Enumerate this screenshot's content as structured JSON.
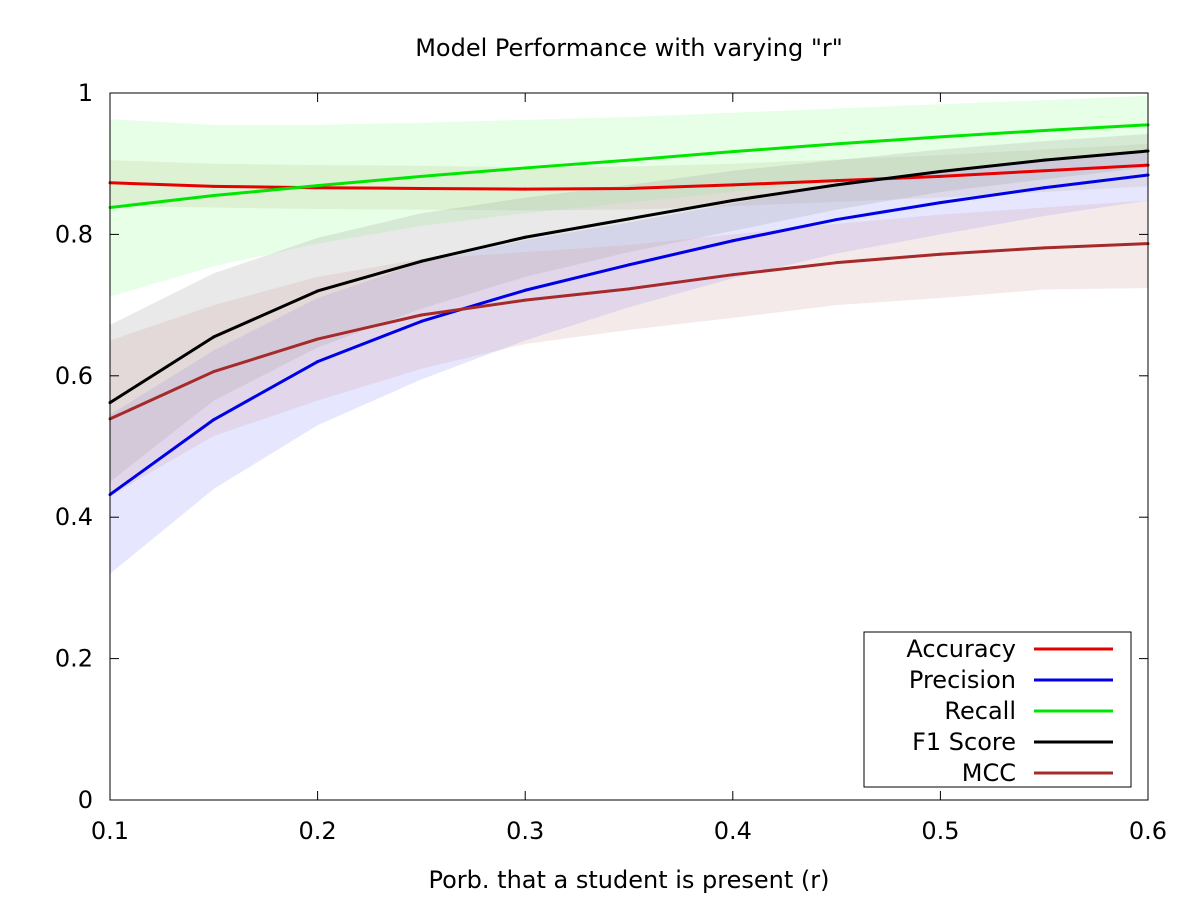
{
  "chart_data": {
    "type": "line",
    "title": "Model Performance with varying \"r\"",
    "xlabel": "Porb. that a student is present (r)",
    "ylabel": "",
    "xlim": [
      0.1,
      0.6
    ],
    "ylim": [
      0,
      1
    ],
    "x_ticks": [
      "0.1",
      "0.2",
      "0.3",
      "0.4",
      "0.5",
      "0.6"
    ],
    "y_ticks": [
      "0",
      "0.2",
      "0.4",
      "0.6",
      "0.8",
      "1"
    ],
    "legend_position": "bottom-right",
    "grid": false,
    "x": [
      0.1,
      0.15,
      0.2,
      0.25,
      0.3,
      0.35,
      0.4,
      0.45,
      0.5,
      0.55,
      0.6
    ],
    "series": [
      {
        "name": "Accuracy",
        "color": "#e60000",
        "band_color": "#c8b48c",
        "values": [
          0.873,
          0.868,
          0.866,
          0.865,
          0.864,
          0.865,
          0.87,
          0.876,
          0.882,
          0.89,
          0.898
        ],
        "lower": [
          0.84,
          0.838,
          0.836,
          0.835,
          0.834,
          0.835,
          0.84,
          0.846,
          0.852,
          0.86,
          0.868
        ],
        "upper": [
          0.905,
          0.9,
          0.898,
          0.897,
          0.895,
          0.896,
          0.9,
          0.906,
          0.912,
          0.92,
          0.928
        ]
      },
      {
        "name": "Precision",
        "color": "#0000e6",
        "band_color": "#8c8cff",
        "values": [
          0.432,
          0.538,
          0.62,
          0.677,
          0.721,
          0.757,
          0.791,
          0.821,
          0.845,
          0.866,
          0.884
        ],
        "lower": [
          0.32,
          0.44,
          0.53,
          0.595,
          0.65,
          0.697,
          0.738,
          0.773,
          0.8,
          0.826,
          0.848
        ],
        "upper": [
          0.545,
          0.636,
          0.71,
          0.76,
          0.792,
          0.817,
          0.844,
          0.869,
          0.89,
          0.906,
          0.92
        ]
      },
      {
        "name": "Recall",
        "color": "#00e600",
        "band_color": "#8cff8c",
        "values": [
          0.838,
          0.855,
          0.869,
          0.882,
          0.894,
          0.905,
          0.917,
          0.928,
          0.938,
          0.947,
          0.955
        ],
        "lower": [
          0.712,
          0.755,
          0.787,
          0.812,
          0.83,
          0.845,
          0.86,
          0.875,
          0.89,
          0.905,
          0.915
        ],
        "upper": [
          0.963,
          0.955,
          0.955,
          0.958,
          0.962,
          0.966,
          0.972,
          0.978,
          0.984,
          0.99,
          0.996
        ]
      },
      {
        "name": "F1 Score",
        "color": "#000000",
        "band_color": "#9a9a9a",
        "values": [
          0.562,
          0.655,
          0.72,
          0.762,
          0.796,
          0.822,
          0.848,
          0.87,
          0.889,
          0.905,
          0.918
        ],
        "lower": [
          0.45,
          0.565,
          0.64,
          0.695,
          0.74,
          0.775,
          0.805,
          0.835,
          0.86,
          0.878,
          0.895
        ],
        "upper": [
          0.672,
          0.745,
          0.795,
          0.83,
          0.852,
          0.87,
          0.89,
          0.905,
          0.92,
          0.932,
          0.942
        ]
      },
      {
        "name": "MCC",
        "color": "#a52a2a",
        "band_color": "#d2a0a0",
        "values": [
          0.539,
          0.606,
          0.652,
          0.686,
          0.707,
          0.723,
          0.743,
          0.76,
          0.772,
          0.781,
          0.787
        ],
        "lower": [
          0.43,
          0.515,
          0.565,
          0.61,
          0.645,
          0.665,
          0.682,
          0.7,
          0.71,
          0.722,
          0.724
        ],
        "upper": [
          0.65,
          0.7,
          0.74,
          0.765,
          0.775,
          0.785,
          0.8,
          0.815,
          0.828,
          0.838,
          0.848
        ]
      }
    ]
  }
}
